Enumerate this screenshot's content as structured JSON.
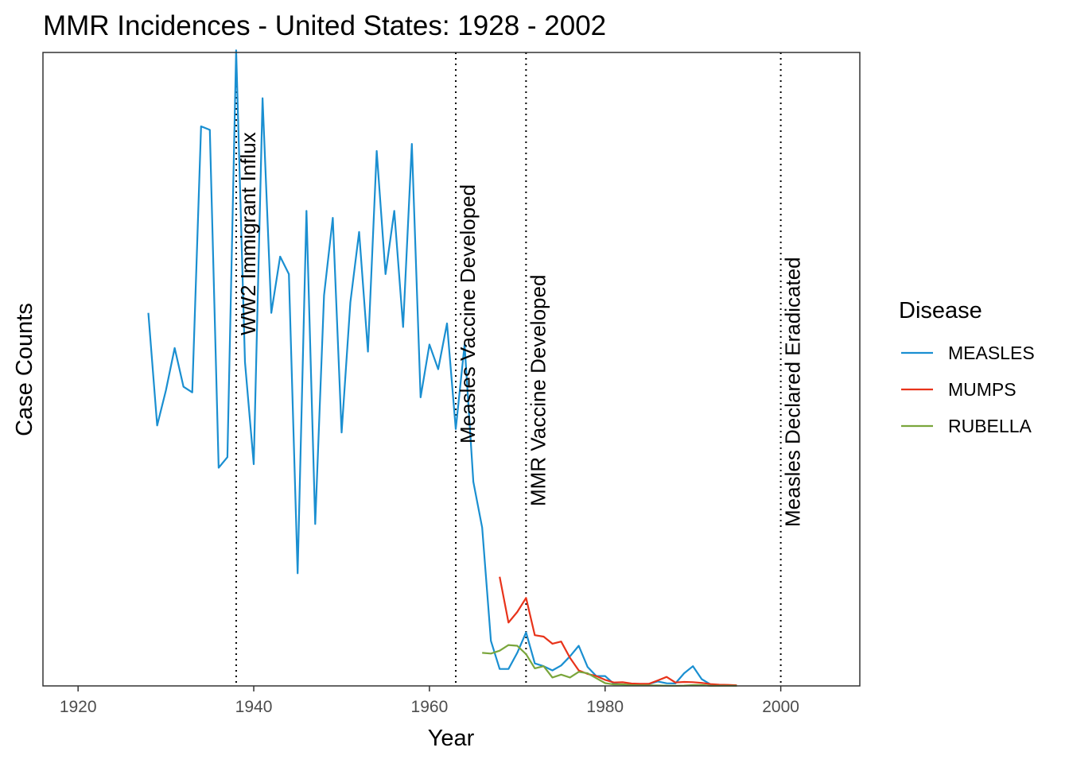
{
  "chart_data": {
    "type": "line",
    "title": "MMR Incidences - United States: 1928 - 2002",
    "xlabel": "Year",
    "ylabel": "Case Counts",
    "xlim": [
      1916,
      2009
    ],
    "ylim": [
      0,
      900000
    ],
    "xticks": [
      1920,
      1940,
      1960,
      1980,
      2000
    ],
    "grid": false,
    "legend": {
      "title": "Disease",
      "position": "right"
    },
    "series": [
      {
        "name": "MEASLES",
        "color": "#1a8fd1",
        "x": [
          1928,
          1929,
          1930,
          1931,
          1932,
          1933,
          1934,
          1935,
          1936,
          1937,
          1938,
          1939,
          1940,
          1941,
          1942,
          1943,
          1944,
          1945,
          1946,
          1947,
          1948,
          1949,
          1950,
          1951,
          1952,
          1953,
          1954,
          1955,
          1956,
          1957,
          1958,
          1959,
          1960,
          1961,
          1962,
          1963,
          1964,
          1965,
          1966,
          1967,
          1968,
          1969,
          1970,
          1971,
          1972,
          1973,
          1974,
          1975,
          1976,
          1977,
          1978,
          1979,
          1980,
          1981,
          1982,
          1983,
          1984,
          1985,
          1986,
          1987,
          1988,
          1989,
          1990,
          1991,
          1992,
          1993,
          1994,
          1995
        ],
        "y": [
          530000,
          370000,
          420000,
          480000,
          425000,
          417000,
          795000,
          790000,
          310000,
          325000,
          903000,
          460000,
          315000,
          835000,
          530000,
          610000,
          585000,
          160000,
          675000,
          230000,
          555000,
          665000,
          360000,
          545000,
          645000,
          475000,
          760000,
          585000,
          675000,
          510000,
          770000,
          410000,
          485000,
          450000,
          515000,
          365000,
          485000,
          290000,
          225000,
          64000,
          24000,
          24000,
          47000,
          76000,
          32000,
          28000,
          22000,
          29000,
          42000,
          57000,
          27000,
          14000,
          14000,
          3000,
          2000,
          1500,
          2500,
          2800,
          6300,
          3700,
          3500,
          18000,
          28000,
          9600,
          2200,
          300,
          1000,
          300
        ]
      },
      {
        "name": "MUMPS",
        "color": "#e8331a",
        "x": [
          1968,
          1969,
          1970,
          1971,
          1972,
          1973,
          1974,
          1975,
          1976,
          1977,
          1978,
          1979,
          1980,
          1981,
          1982,
          1983,
          1984,
          1985,
          1986,
          1987,
          1988,
          1989,
          1990,
          1991,
          1992,
          1993,
          1994,
          1995
        ],
        "y": [
          155000,
          90000,
          105000,
          125000,
          72000,
          70000,
          60000,
          63000,
          40000,
          22000,
          17000,
          14000,
          8600,
          4900,
          5200,
          3400,
          3000,
          3000,
          7800,
          12800,
          4800,
          5700,
          5300,
          4300,
          2600,
          1700,
          1500,
          900
        ]
      },
      {
        "name": "RUBELLA",
        "color": "#7aa63c",
        "x": [
          1966,
          1967,
          1968,
          1969,
          1970,
          1971,
          1972,
          1973,
          1974,
          1975,
          1976,
          1977,
          1978,
          1979,
          1980,
          1981,
          1982,
          1983,
          1984,
          1985,
          1986,
          1987,
          1988,
          1989,
          1990,
          1991,
          1992,
          1993,
          1994,
          1995
        ],
        "y": [
          47000,
          46000,
          50000,
          58000,
          57000,
          45000,
          25000,
          28000,
          12000,
          16000,
          12000,
          20000,
          18000,
          11000,
          3900,
          2000,
          2300,
          970,
          750,
          630,
          550,
          310,
          230,
          400,
          1100,
          1400,
          160,
          190,
          230,
          130
        ]
      }
    ],
    "annotations": [
      {
        "x": 1938,
        "label": "WW2 Immigrant Influx"
      },
      {
        "x": 1963,
        "label": "Measles Vaccine Developed"
      },
      {
        "x": 1971,
        "label": "MMR Vaccine Developed"
      },
      {
        "x": 2000,
        "label": "Measles Declared Eradicated"
      }
    ],
    "colors": {
      "axis": "#333333",
      "tick_text": "#4d4d4d",
      "vline": "#000000"
    }
  }
}
